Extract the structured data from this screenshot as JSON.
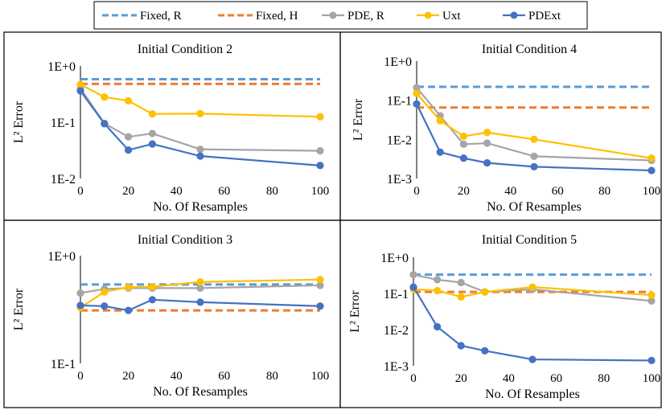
{
  "legend": {
    "items": [
      {
        "name": "Fixed, R",
        "color": "#5B9BD5",
        "style": "dashed"
      },
      {
        "name": "Fixed, H",
        "color": "#ED7D31",
        "style": "dashed"
      },
      {
        "name": "PDE, R",
        "color": "#A5A5A5",
        "style": "solid-marker"
      },
      {
        "name": "Uxt",
        "color": "#FFC000",
        "style": "solid-marker"
      },
      {
        "name": "PDExt",
        "color": "#4472C4",
        "style": "solid-marker"
      }
    ]
  },
  "chart_data": [
    {
      "type": "line",
      "title": "Initial Condition 2",
      "xlabel": "No. Of Resamples",
      "ylabel": "L² Error",
      "yscale": "log",
      "xlim": [
        0,
        100
      ],
      "ylim": [
        0.01,
        1
      ],
      "x_ticks": [
        0,
        20,
        40,
        60,
        80,
        100
      ],
      "y_ticks": [
        {
          "value": 1,
          "label": "1E+0"
        },
        {
          "value": 0.1,
          "label": "1E-1"
        },
        {
          "value": 0.01,
          "label": "1E-2"
        }
      ],
      "x": [
        0,
        10,
        20,
        30,
        50,
        100
      ],
      "series": [
        {
          "name": "Fixed, R",
          "values": [
            0.58,
            0.58,
            0.58,
            0.58,
            0.58,
            0.58
          ]
        },
        {
          "name": "Fixed, H",
          "values": [
            0.48,
            0.48,
            0.48,
            0.48,
            0.48,
            0.48
          ]
        },
        {
          "name": "PDE, R",
          "values": [
            0.4,
            0.095,
            0.055,
            0.063,
            0.033,
            0.031
          ]
        },
        {
          "name": "Uxt",
          "values": [
            0.47,
            0.28,
            0.24,
            0.14,
            0.142,
            0.125
          ]
        },
        {
          "name": "PDExt",
          "values": [
            0.36,
            0.094,
            0.032,
            0.041,
            0.025,
            0.017
          ]
        }
      ]
    },
    {
      "type": "line",
      "title": "Initial Condition 4",
      "xlabel": "No. Of Resamples",
      "ylabel": "L² Error",
      "yscale": "log",
      "xlim": [
        0,
        100
      ],
      "ylim": [
        0.001,
        1
      ],
      "x_ticks": [
        0,
        20,
        40,
        60,
        80,
        100
      ],
      "y_ticks": [
        {
          "value": 1,
          "label": "1E+0"
        },
        {
          "value": 0.1,
          "label": "1E-1"
        },
        {
          "value": 0.01,
          "label": "1E-2"
        },
        {
          "value": 0.001,
          "label": "1E-3"
        }
      ],
      "x": [
        0,
        10,
        20,
        30,
        50,
        100
      ],
      "series": [
        {
          "name": "Fixed, R",
          "values": [
            0.22,
            0.22,
            0.22,
            0.22,
            0.22,
            0.22
          ]
        },
        {
          "name": "Fixed, H",
          "values": [
            0.065,
            0.065,
            0.065,
            0.065,
            0.065,
            0.065
          ]
        },
        {
          "name": "PDE, R",
          "values": [
            0.21,
            0.04,
            0.0075,
            0.008,
            0.0037,
            0.0029
          ]
        },
        {
          "name": "Uxt",
          "values": [
            0.15,
            0.03,
            0.012,
            0.015,
            0.01,
            0.0033
          ]
        },
        {
          "name": "PDExt",
          "values": [
            0.08,
            0.0047,
            0.0033,
            0.0025,
            0.002,
            0.0016
          ]
        }
      ]
    },
    {
      "type": "line",
      "title": "Initial Condition 3",
      "xlabel": "No. Of Resamples",
      "ylabel": "L² Error",
      "yscale": "log",
      "xlim": [
        0,
        100
      ],
      "ylim": [
        0.1,
        1
      ],
      "x_ticks": [
        0,
        20,
        40,
        60,
        80,
        100
      ],
      "y_ticks": [
        {
          "value": 1,
          "label": "1E+0"
        },
        {
          "value": 0.1,
          "label": "1E-1"
        }
      ],
      "x": [
        0,
        10,
        20,
        30,
        50,
        100
      ],
      "series": [
        {
          "name": "Fixed, R",
          "values": [
            0.54,
            0.54,
            0.54,
            0.54,
            0.54,
            0.54
          ]
        },
        {
          "name": "Fixed, H",
          "values": [
            0.31,
            0.31,
            0.31,
            0.31,
            0.31,
            0.31
          ]
        },
        {
          "name": "PDE, R",
          "values": [
            0.45,
            0.49,
            0.5,
            0.5,
            0.5,
            0.53
          ]
        },
        {
          "name": "Uxt",
          "values": [
            0.33,
            0.46,
            0.51,
            0.515,
            0.57,
            0.6
          ]
        },
        {
          "name": "PDExt",
          "values": [
            0.345,
            0.34,
            0.31,
            0.39,
            0.37,
            0.34
          ]
        }
      ]
    },
    {
      "type": "line",
      "title": "Initial Condition 5",
      "xlabel": "No. Of Resamples",
      "ylabel": "L² Error",
      "yscale": "log",
      "xlim": [
        0,
        100
      ],
      "ylim": [
        0.001,
        1
      ],
      "x_ticks": [
        0,
        20,
        40,
        60,
        80,
        100
      ],
      "y_ticks": [
        {
          "value": 1,
          "label": "1E+0"
        },
        {
          "value": 0.1,
          "label": "1E-1"
        },
        {
          "value": 0.01,
          "label": "1E-2"
        },
        {
          "value": 0.001,
          "label": "1E-3"
        }
      ],
      "x": [
        0,
        10,
        20,
        30,
        50,
        100
      ],
      "series": [
        {
          "name": "Fixed, R",
          "values": [
            0.33,
            0.33,
            0.33,
            0.33,
            0.33,
            0.33
          ]
        },
        {
          "name": "Fixed, H",
          "values": [
            0.11,
            0.11,
            0.11,
            0.11,
            0.11,
            0.11
          ]
        },
        {
          "name": "PDE, R",
          "values": [
            0.33,
            0.24,
            0.2,
            0.11,
            0.13,
            0.062
          ]
        },
        {
          "name": "Uxt",
          "values": [
            0.13,
            0.12,
            0.08,
            0.11,
            0.15,
            0.09
          ]
        },
        {
          "name": "PDExt",
          "values": [
            0.15,
            0.012,
            0.0036,
            0.0026,
            0.0015,
            0.0014
          ]
        }
      ]
    }
  ]
}
